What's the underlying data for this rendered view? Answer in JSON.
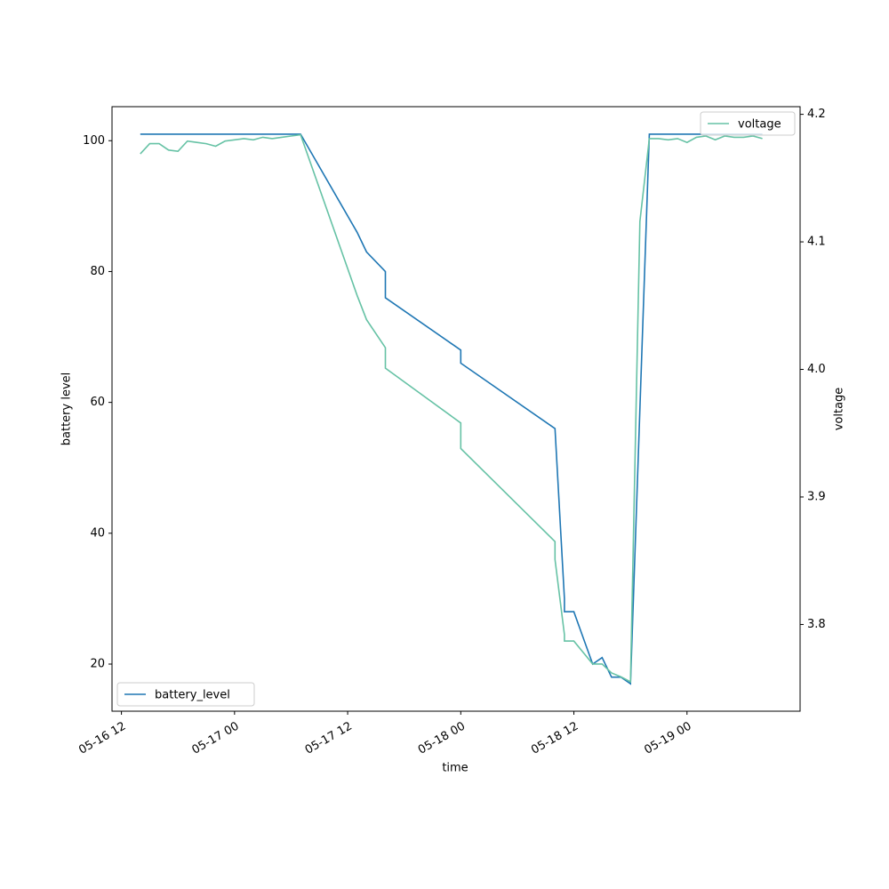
{
  "chart_data": {
    "type": "line",
    "xlabel": "time",
    "ylabel": "battery level",
    "y2label": "voltage",
    "xlim": [
      "05-16 11",
      "05-19 12"
    ],
    "xticks": [
      "05-16 12",
      "05-17 00",
      "05-17 12",
      "05-18 00",
      "05-18 12",
      "05-19 00"
    ],
    "ylim": [
      12.8,
      105.2
    ],
    "yticks": [
      20,
      40,
      60,
      80,
      100
    ],
    "y2lim": [
      3.732,
      4.206
    ],
    "y2ticks": [
      3.8,
      3.9,
      {
        "value": 4,
        "label": "4.0"
      },
      4.1,
      4.2
    ],
    "series": [
      {
        "name": "battery_level",
        "color": "#1f77b4",
        "legend": "lower left",
        "x": [
          "05-16 14",
          "05-17 07",
          "05-17 13",
          "05-17 14",
          "05-17 16",
          "05-17 16",
          "05-18 00",
          "05-18 00",
          "05-18 10",
          "05-18 11",
          "05-18 11",
          "05-18 12",
          "05-18 13",
          "05-18 13",
          "05-18 14",
          "05-18 15",
          "05-18 16",
          "05-18 17",
          "05-18 18",
          "05-18 18",
          "05-18 20",
          "05-19 08"
        ],
        "values": [
          101,
          101,
          86,
          83,
          80,
          76,
          68,
          66,
          56,
          30,
          28,
          28,
          24,
          24,
          20,
          21,
          18,
          18,
          17,
          17,
          101,
          101
        ]
      },
      {
        "name": "voltage",
        "color": "#66c2a5",
        "legend": "upper right",
        "axis": "y2",
        "x": [
          "05-16 14",
          "05-16 15",
          "05-16 16",
          "05-16 17",
          "05-16 18",
          "05-16 19",
          "05-16 20",
          "05-16 21",
          "05-16 22",
          "05-16 23",
          "05-17 00",
          "05-17 01",
          "05-17 02",
          "05-17 03",
          "05-17 04",
          "05-17 05",
          "05-17 06",
          "05-17 07",
          "05-17 13",
          "05-17 14",
          "05-17 16",
          "05-17 16",
          "05-18 00",
          "05-18 00",
          "05-18 10",
          "05-18 10",
          "05-18 11",
          "05-18 11",
          "05-18 12",
          "05-18 13",
          "05-18 13",
          "05-18 14",
          "05-18 15",
          "05-18 16",
          "05-18 17",
          "05-18 18",
          "05-18 18",
          "05-18 19",
          "05-18 20",
          "05-18 21",
          "05-18 22",
          "05-18 23",
          "05-19 00",
          "05-19 01",
          "05-19 02",
          "05-19 03",
          "05-19 04",
          "05-19 05",
          "05-19 06",
          "05-19 07",
          "05-19 08"
        ],
        "values": [
          4.169,
          4.177,
          4.177,
          4.172,
          4.171,
          4.179,
          4.178,
          4.177,
          4.175,
          4.179,
          4.18,
          4.181,
          4.18,
          4.182,
          4.181,
          4.182,
          4.183,
          4.184,
          4.058,
          4.039,
          4.017,
          4.001,
          3.958,
          3.938,
          3.865,
          3.851,
          3.792,
          3.787,
          3.787,
          3.778,
          3.778,
          3.769,
          3.769,
          3.762,
          3.759,
          3.755,
          3.755,
          4.116,
          4.181,
          4.181,
          4.18,
          4.181,
          4.178,
          4.182,
          4.183,
          4.18,
          4.183,
          4.182,
          4.182,
          4.183,
          4.181
        ]
      }
    ]
  }
}
